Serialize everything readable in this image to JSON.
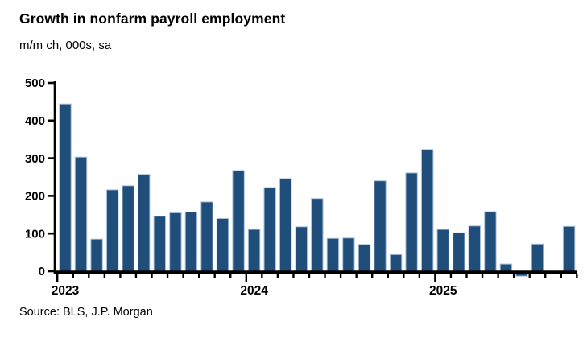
{
  "header": {
    "title": "Growth in nonfarm payroll employment",
    "subtitle": "m/m ch, 000s, sa"
  },
  "footer": {
    "source": "Source: BLS, J.P. Morgan"
  },
  "style": {
    "bar_fill": "#1F4E7B",
    "bar_border": "#A9BFD8",
    "axis_color": "#000000",
    "text_color": "#000000",
    "background": "#FFFFFF"
  },
  "chart_data": {
    "type": "bar",
    "title": "Growth in nonfarm payroll employment",
    "subtitle": "m/m ch, 000s, sa",
    "source": "Source: BLS, J.P. Morgan",
    "xlabel": "",
    "ylabel": "",
    "grid": false,
    "legend": false,
    "ylim": [
      0,
      500
    ],
    "y_ticks": [
      0,
      100,
      200,
      300,
      400,
      500
    ],
    "y_tick_labels": [
      "0",
      "100",
      "200",
      "300",
      "400",
      "500"
    ],
    "x": [
      "Jan 2023",
      "Feb 2023",
      "Mar 2023",
      "Apr 2023",
      "May 2023",
      "Jun 2023",
      "Jul 2023",
      "Aug 2023",
      "Sep 2023",
      "Oct 2023",
      "Nov 2023",
      "Dec 2023",
      "Jan 2024",
      "Feb 2024",
      "Mar 2024",
      "Apr 2024",
      "May 2024",
      "Jun 2024",
      "Jul 2024",
      "Aug 2024",
      "Sep 2024",
      "Oct 2024",
      "Nov 2024",
      "Dec 2024",
      "Jan 2025",
      "Feb 2025",
      "Mar 2025",
      "Apr 2025",
      "May 2025",
      "Jun 2025",
      "Jul 2025",
      "Aug 2025",
      "Sep 2025"
    ],
    "values": [
      444,
      303,
      85,
      216,
      227,
      257,
      146,
      155,
      157,
      184,
      140,
      267,
      111,
      222,
      246,
      118,
      193,
      87,
      88,
      71,
      240,
      44,
      261,
      323,
      111,
      102,
      120,
      158,
      19,
      -13,
      72,
      -4,
      119
    ],
    "year_tick_labels": [
      "2023",
      "2024",
      "2025"
    ],
    "year_start_indices": [
      0,
      12,
      24
    ]
  }
}
